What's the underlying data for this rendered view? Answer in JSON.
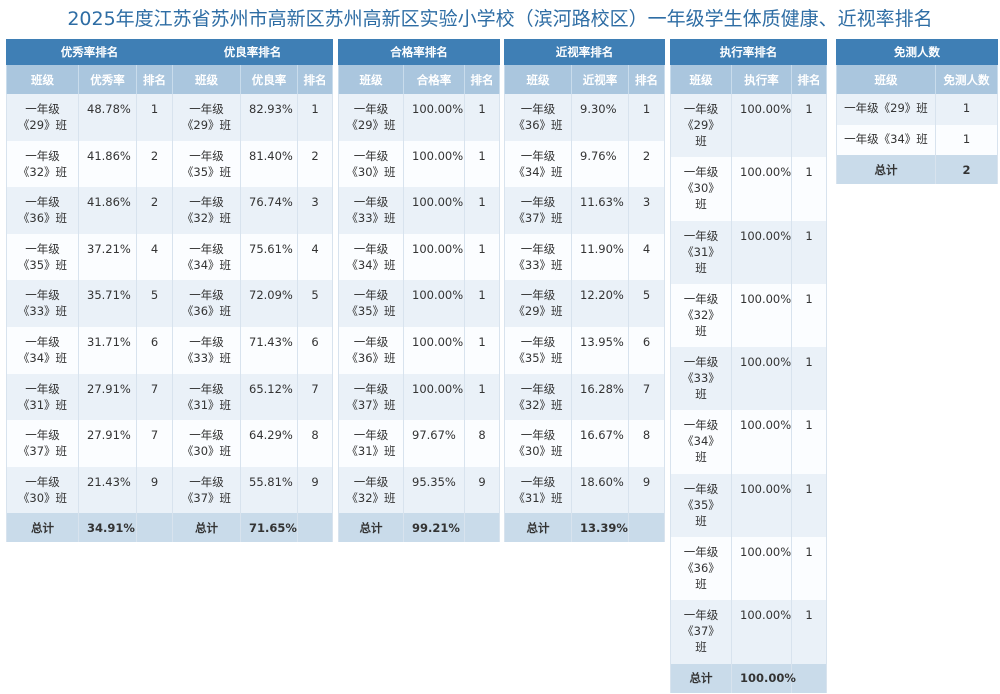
{
  "title": "2025年度江苏省苏州市高新区苏州高新区实验小学校（滨河路校区）一年级学生体质健康、近视率排名",
  "col_class": "班级",
  "col_rank": "排名",
  "total_label": "总计",
  "excellent": {
    "title": "优秀率排名",
    "value_col": "优秀率",
    "rows": [
      {
        "l1": "一年级",
        "l2": "《29》班",
        "v": "48.78%",
        "r": "1"
      },
      {
        "l1": "一年级",
        "l2": "《32》班",
        "v": "41.86%",
        "r": "2"
      },
      {
        "l1": "一年级",
        "l2": "《36》班",
        "v": "41.86%",
        "r": "2"
      },
      {
        "l1": "一年级",
        "l2": "《35》班",
        "v": "37.21%",
        "r": "4"
      },
      {
        "l1": "一年级",
        "l2": "《33》班",
        "v": "35.71%",
        "r": "5"
      },
      {
        "l1": "一年级",
        "l2": "《34》班",
        "v": "31.71%",
        "r": "6"
      },
      {
        "l1": "一年级",
        "l2": "《31》班",
        "v": "27.91%",
        "r": "7"
      },
      {
        "l1": "一年级",
        "l2": "《37》班",
        "v": "27.91%",
        "r": "7"
      },
      {
        "l1": "一年级",
        "l2": "《30》班",
        "v": "21.43%",
        "r": "9"
      }
    ],
    "total": "34.91%"
  },
  "good": {
    "title": "优良率排名",
    "value_col": "优良率",
    "rows": [
      {
        "l1": "一年级",
        "l2": "《29》班",
        "v": "82.93%",
        "r": "1"
      },
      {
        "l1": "一年级",
        "l2": "《35》班",
        "v": "81.40%",
        "r": "2"
      },
      {
        "l1": "一年级",
        "l2": "《32》班",
        "v": "76.74%",
        "r": "3"
      },
      {
        "l1": "一年级",
        "l2": "《34》班",
        "v": "75.61%",
        "r": "4"
      },
      {
        "l1": "一年级",
        "l2": "《36》班",
        "v": "72.09%",
        "r": "5"
      },
      {
        "l1": "一年级",
        "l2": "《33》班",
        "v": "71.43%",
        "r": "6"
      },
      {
        "l1": "一年级",
        "l2": "《31》班",
        "v": "65.12%",
        "r": "7"
      },
      {
        "l1": "一年级",
        "l2": "《30》班",
        "v": "64.29%",
        "r": "8"
      },
      {
        "l1": "一年级",
        "l2": "《37》班",
        "v": "55.81%",
        "r": "9"
      }
    ],
    "total": "71.65%"
  },
  "pass": {
    "title": "合格率排名",
    "value_col": "合格率",
    "rows": [
      {
        "l1": "一年级",
        "l2": "《29》班",
        "v": "100.00%",
        "r": "1"
      },
      {
        "l1": "一年级",
        "l2": "《30》班",
        "v": "100.00%",
        "r": "1"
      },
      {
        "l1": "一年级",
        "l2": "《33》班",
        "v": "100.00%",
        "r": "1"
      },
      {
        "l1": "一年级",
        "l2": "《34》班",
        "v": "100.00%",
        "r": "1"
      },
      {
        "l1": "一年级",
        "l2": "《35》班",
        "v": "100.00%",
        "r": "1"
      },
      {
        "l1": "一年级",
        "l2": "《36》班",
        "v": "100.00%",
        "r": "1"
      },
      {
        "l1": "一年级",
        "l2": "《37》班",
        "v": "100.00%",
        "r": "1"
      },
      {
        "l1": "一年级",
        "l2": "《31》班",
        "v": "97.67%",
        "r": "8"
      },
      {
        "l1": "一年级",
        "l2": "《32》班",
        "v": "95.35%",
        "r": "9"
      }
    ],
    "total": "99.21%"
  },
  "myopia": {
    "title": "近视率排名",
    "value_col": "近视率",
    "rows": [
      {
        "l1": "一年级",
        "l2": "《36》班",
        "v": "9.30%",
        "r": "1"
      },
      {
        "l1": "一年级",
        "l2": "《34》班",
        "v": "9.76%",
        "r": "2"
      },
      {
        "l1": "一年级",
        "l2": "《37》班",
        "v": "11.63%",
        "r": "3"
      },
      {
        "l1": "一年级",
        "l2": "《33》班",
        "v": "11.90%",
        "r": "4"
      },
      {
        "l1": "一年级",
        "l2": "《29》班",
        "v": "12.20%",
        "r": "5"
      },
      {
        "l1": "一年级",
        "l2": "《35》班",
        "v": "13.95%",
        "r": "6"
      },
      {
        "l1": "一年级",
        "l2": "《32》班",
        "v": "16.28%",
        "r": "7"
      },
      {
        "l1": "一年级",
        "l2": "《30》班",
        "v": "16.67%",
        "r": "8"
      },
      {
        "l1": "一年级",
        "l2": "《31》班",
        "v": "18.60%",
        "r": "9"
      }
    ],
    "total": "13.39%"
  },
  "execution": {
    "title": "执行率排名",
    "value_col": "执行率",
    "rows": [
      {
        "l1": "一年级",
        "l2": "《29》",
        "l3": "班",
        "v": "100.00%",
        "r": "1"
      },
      {
        "l1": "一年级",
        "l2": "《30》",
        "l3": "班",
        "v": "100.00%",
        "r": "1"
      },
      {
        "l1": "一年级",
        "l2": "《31》",
        "l3": "班",
        "v": "100.00%",
        "r": "1"
      },
      {
        "l1": "一年级",
        "l2": "《32》",
        "l3": "班",
        "v": "100.00%",
        "r": "1"
      },
      {
        "l1": "一年级",
        "l2": "《33》",
        "l3": "班",
        "v": "100.00%",
        "r": "1"
      },
      {
        "l1": "一年级",
        "l2": "《34》",
        "l3": "班",
        "v": "100.00%",
        "r": "1"
      },
      {
        "l1": "一年级",
        "l2": "《35》",
        "l3": "班",
        "v": "100.00%",
        "r": "1"
      },
      {
        "l1": "一年级",
        "l2": "《36》",
        "l3": "班",
        "v": "100.00%",
        "r": "1"
      },
      {
        "l1": "一年级",
        "l2": "《37》",
        "l3": "班",
        "v": "100.00%",
        "r": "1"
      }
    ],
    "total": "100.00%"
  },
  "exempt": {
    "title": "免测人数",
    "value_col": "免测人数",
    "rows": [
      {
        "l1": "一年级《29》班",
        "v": "1"
      },
      {
        "l1": "一年级《34》班",
        "v": "1"
      }
    ],
    "total": "2"
  }
}
